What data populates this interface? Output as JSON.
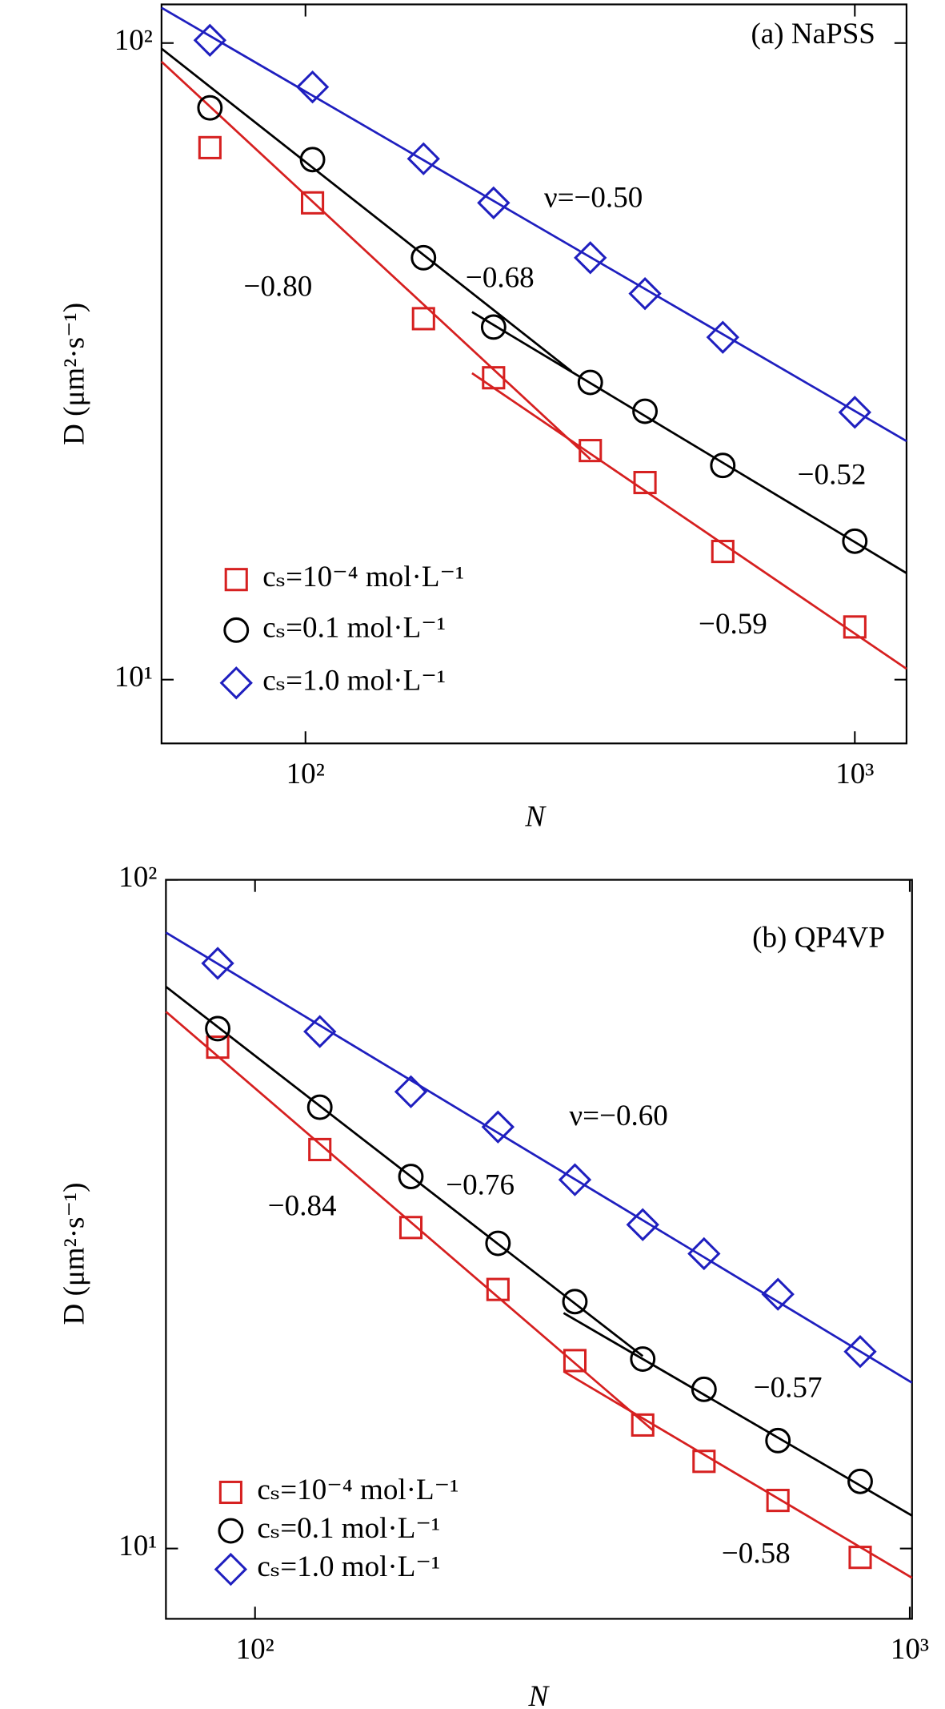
{
  "chart_data": [
    {
      "type": "scatter",
      "title": "(a) NaPSS",
      "xlabel": "N",
      "ylabel": "D (μm²·s⁻¹)",
      "xscale": "log",
      "yscale": "log",
      "xlim": [
        54.7,
        1242
      ],
      "ylim": [
        7.94,
        115
      ],
      "xticks": [
        {
          "value": 100,
          "label": "10²"
        },
        {
          "value": 1000,
          "label": "10³"
        }
      ],
      "yticks": [
        {
          "value": 10,
          "label": "10¹"
        },
        {
          "value": 100,
          "label": "10²"
        }
      ],
      "legend": "lower left",
      "x": [
        67,
        103,
        164,
        220,
        330,
        415,
        575,
        1000
      ],
      "series": [
        {
          "name": "cₛ=10⁻⁴ mol·L⁻¹",
          "color": "#d62020",
          "marker": "square",
          "values": [
            68.5,
            56.1,
            36.9,
            29.8,
            22.9,
            20.4,
            15.9,
            12.1
          ]
        },
        {
          "name": "cₛ=0.1 mol·L⁻¹",
          "color": "#000000",
          "marker": "circle",
          "values": [
            79.1,
            65.6,
            46.0,
            35.8,
            29.3,
            26.4,
            21.7,
            16.5
          ]
        },
        {
          "name": "cₛ=1.0 mol·L⁻¹",
          "color": "#1f1fbf",
          "marker": "diamond",
          "values": [
            101,
            85.3,
            65.8,
            56.1,
            46.0,
            40.4,
            34.5,
            26.3
          ]
        }
      ],
      "fits": [
        {
          "color": "#1f1fbf",
          "x": [
            54.7,
            1242
          ],
          "values": [
            113.6,
            23.7
          ]
        },
        {
          "color": "#000000",
          "x": [
            54.7,
            305
          ],
          "values": [
            98.0,
            30.5
          ]
        },
        {
          "color": "#000000",
          "x": [
            201,
            1242
          ],
          "values": [
            37.8,
            14.7
          ]
        },
        {
          "color": "#d62020",
          "x": [
            54.7,
            330
          ],
          "values": [
            93.5,
            22.2
          ]
        },
        {
          "color": "#d62020",
          "x": [
            201,
            1242
          ],
          "values": [
            30.3,
            10.4
          ]
        }
      ],
      "annotations": [
        {
          "text": "ν=−0.50",
          "color": "#1f1fbf"
        },
        {
          "text": "−0.68",
          "color": "#000000"
        },
        {
          "text": "−0.80",
          "color": "#d62020"
        },
        {
          "text": "−0.52",
          "color": "#000000"
        },
        {
          "text": "−0.59",
          "color": "#d62020"
        }
      ]
    },
    {
      "type": "scatter",
      "title": "(b) QP4VP",
      "xlabel": "N",
      "ylabel": "D (μm²·s⁻¹)",
      "xscale": "log",
      "yscale": "log",
      "xlim": [
        73.1,
        1008
      ],
      "ylim": [
        7.85,
        100
      ],
      "xticks": [
        {
          "value": 100,
          "label": "10²"
        },
        {
          "value": 1000,
          "label": "10³"
        }
      ],
      "yticks": [
        {
          "value": 10,
          "label": "10¹"
        },
        {
          "value": 100,
          "label": "10²"
        }
      ],
      "legend": "lower left",
      "x": [
        87.7,
        125.6,
        173,
        235,
        308,
        391,
        485,
        629,
        840
      ],
      "series": [
        {
          "name": "cₛ=10⁻⁴ mol·L⁻¹",
          "color": "#d62020",
          "marker": "square",
          "values": [
            56.2,
            39.5,
            30.2,
            24.4,
            19.1,
            15.3,
            13.5,
            11.8,
            9.7
          ]
        },
        {
          "name": "cₛ=0.1 mol·L⁻¹",
          "color": "#000000",
          "marker": "circle",
          "values": [
            59.9,
            45.7,
            36.0,
            28.6,
            23.4,
            19.2,
            17.3,
            14.5,
            12.6
          ]
        },
        {
          "name": "cₛ=1.0 mol·L⁻¹",
          "color": "#1f1fbf",
          "marker": "diamond",
          "values": [
            75.0,
            59.3,
            48.2,
            42.7,
            35.6,
            30.5,
            27.6,
            24.0,
            19.7
          ]
        }
      ],
      "fits": [
        {
          "color": "#1f1fbf",
          "x": [
            73.1,
            1008
          ],
          "values": [
            83.4,
            17.7
          ]
        },
        {
          "color": "#000000",
          "x": [
            73.1,
            391
          ],
          "values": [
            69.2,
            19.4
          ]
        },
        {
          "color": "#000000",
          "x": [
            296,
            1008
          ],
          "values": [
            22.5,
            11.2
          ]
        },
        {
          "color": "#d62020",
          "x": [
            73.1,
            406
          ],
          "values": [
            63.5,
            15.0
          ]
        },
        {
          "color": "#d62020",
          "x": [
            296,
            1008
          ],
          "values": [
            18.4,
            9.04
          ]
        }
      ],
      "annotations": [
        {
          "text": "ν=−0.60",
          "color": "#1f1fbf"
        },
        {
          "text": "−0.76",
          "color": "#000000"
        },
        {
          "text": "−0.84",
          "color": "#d62020"
        },
        {
          "text": "−0.57",
          "color": "#000000"
        },
        {
          "text": "−0.58",
          "color": "#d62020"
        }
      ]
    }
  ]
}
